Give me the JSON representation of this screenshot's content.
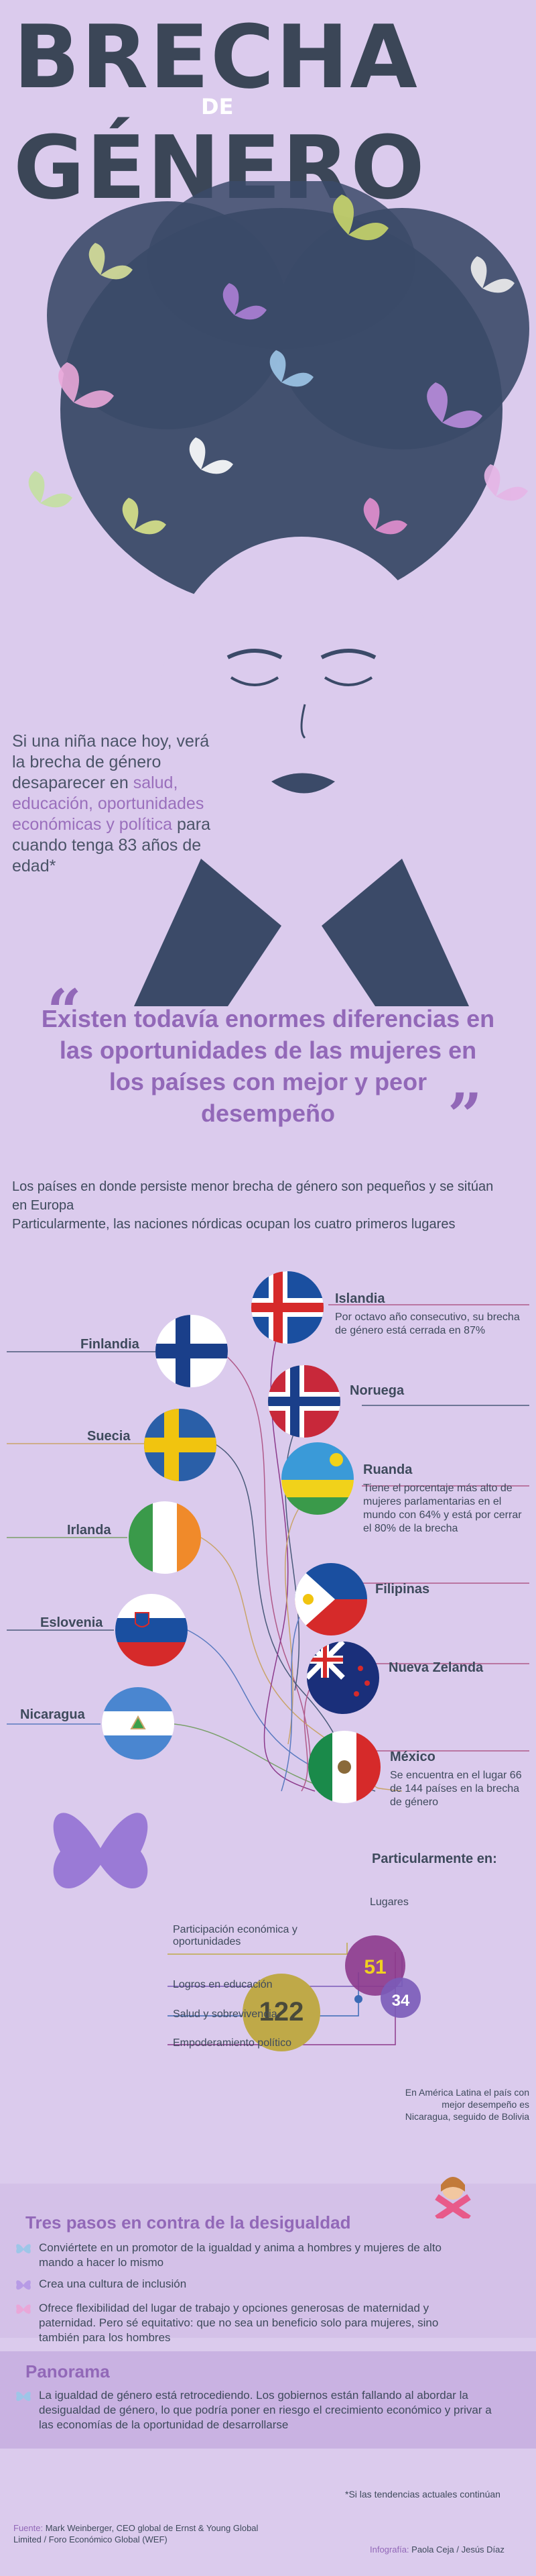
{
  "title": {
    "line1": "BRECHA",
    "de": "DE",
    "line2": "GÉNERO"
  },
  "intro": {
    "part1": "Si una niña nace hoy, verá la brecha de género desaparecer en ",
    "highlight": "salud, educación, oportunidades económicas y política",
    "part2": " para cuando tenga 83 años de edad*"
  },
  "quote": "Existen todavía enormes diferencias en las oportunidades de las mujeres en los países con mejor y peor desempeño",
  "paragraph": {
    "line1": "Los países en donde persiste menor brecha de género son pequeños y se sitúan en Europa",
    "line2": "Particularmente, las naciones nórdicas ocupan los cuatro primeros lugares"
  },
  "countries_left": [
    {
      "name": "Finlandia"
    },
    {
      "name": "Suecia"
    },
    {
      "name": "Irlanda"
    },
    {
      "name": "Eslovenia"
    },
    {
      "name": "Nicaragua"
    }
  ],
  "countries_right": [
    {
      "name": "Islandia",
      "desc": "Por octavo año consecutivo, su brecha de género está cerrada en 87%"
    },
    {
      "name": "Noruega",
      "desc": ""
    },
    {
      "name": "Ruanda",
      "desc": "Tiene el porcentaje más alto de mujeres parlamentarias en el mundo con 64% y está por cerrar el 80% de la brecha"
    },
    {
      "name": "Filipinas",
      "desc": ""
    },
    {
      "name": "Nueva Zelanda",
      "desc": ""
    },
    {
      "name": "México",
      "desc": "Se encuentra en el lugar 66 de 144 países en la brecha de género"
    }
  ],
  "mexico_detail": {
    "heading": "Particularmente en:",
    "lugares_label": "Lugares",
    "values": {
      "economic": 122,
      "political": 51,
      "education": 34,
      "health": 1
    },
    "categories": [
      "Participación económica y oportunidades",
      "Logros en educación",
      "Salud y sobrevivencia",
      "Empoderamiento político"
    ],
    "note": "En América Latina el país con mejor desempeño es Nicaragua, seguido de Bolivia"
  },
  "steps": {
    "heading": "Tres pasos en contra de la desigualdad",
    "items": [
      "Conviértete en un promotor de la igualdad y anima a hombres y mujeres de alto mando a hacer lo mismo",
      "Crea una cultura de inclusión",
      "Ofrece flexibilidad del lugar de trabajo y opciones generosas de maternidad y paternidad. Pero sé equitativo: que no sea un beneficio solo para mujeres, sino también para los hombres"
    ]
  },
  "panorama": {
    "heading": "Panorama",
    "text": "La igualdad de género está retrocediendo. Los gobiernos están fallando al abordar la desigualdad de género, lo que podría poner en riesgo el crecimiento económico y privar a las economías de la oportunidad de desarrollarse"
  },
  "footnote": "*Si las tendencias actuales continúan",
  "footer": {
    "source_label": "Fuente:",
    "source": " Mark Weinberger, CEO global de Ernst & Young Global Limited / Foro Económico Global (WEF)",
    "credit_label": "Infografía:",
    "credit": " Paola Ceja / Jesús Díaz"
  },
  "colors": {
    "background": "#dbcbed",
    "accent": "#9268b8",
    "text": "#3e4a5c",
    "hair": "#3b4a68",
    "circle_economic": "#bfa948",
    "circle_political": "#8c3a8c",
    "circle_education": "#7a5bb8",
    "circle_health": "#3a6ab5"
  }
}
